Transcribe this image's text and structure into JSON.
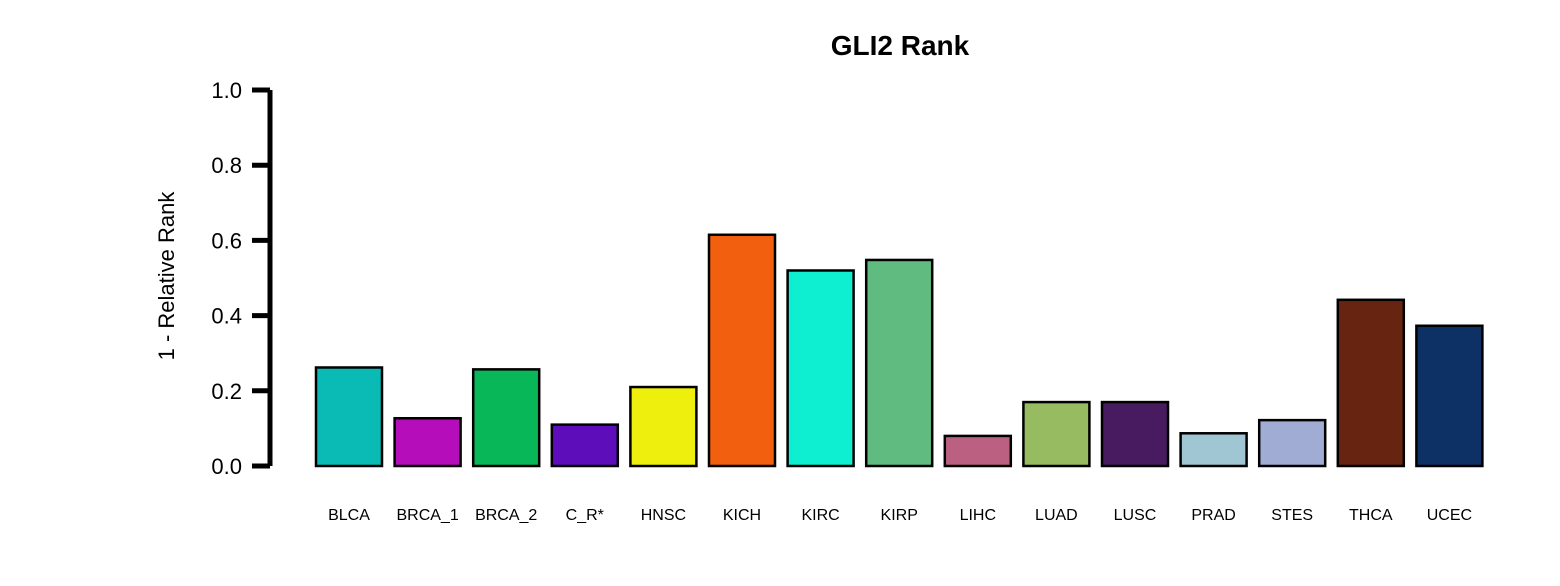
{
  "chart_data": {
    "type": "bar",
    "title": "GLI2 Rank",
    "xlabel": "",
    "ylabel": "1 - Relative Rank",
    "ylim": [
      0,
      1.0
    ],
    "yticks": [
      "0.0",
      "0.2",
      "0.4",
      "0.6",
      "0.8",
      "1.0"
    ],
    "grid": false,
    "categories": [
      "BLCA",
      "BRCA_1",
      "BRCA_2",
      "C_R*",
      "HNSC",
      "KICH",
      "KIRC",
      "KIRP",
      "LIHC",
      "LUAD",
      "LUSC",
      "PRAD",
      "STES",
      "THCA",
      "UCEC"
    ],
    "values": [
      0.262,
      0.127,
      0.257,
      0.11,
      0.21,
      0.615,
      0.52,
      0.548,
      0.08,
      0.17,
      0.17,
      0.087,
      0.122,
      0.442,
      0.373
    ],
    "colors": [
      "#0ABBB5",
      "#B40DB9",
      "#08B757",
      "#5D0DB9",
      "#EEEF0D",
      "#F25F0F",
      "#0DEFD0",
      "#5FBB80",
      "#BB6080",
      "#97BB60",
      "#481B61",
      "#A0C5D3",
      "#A0ACD3",
      "#672511",
      "#0D3065"
    ]
  }
}
